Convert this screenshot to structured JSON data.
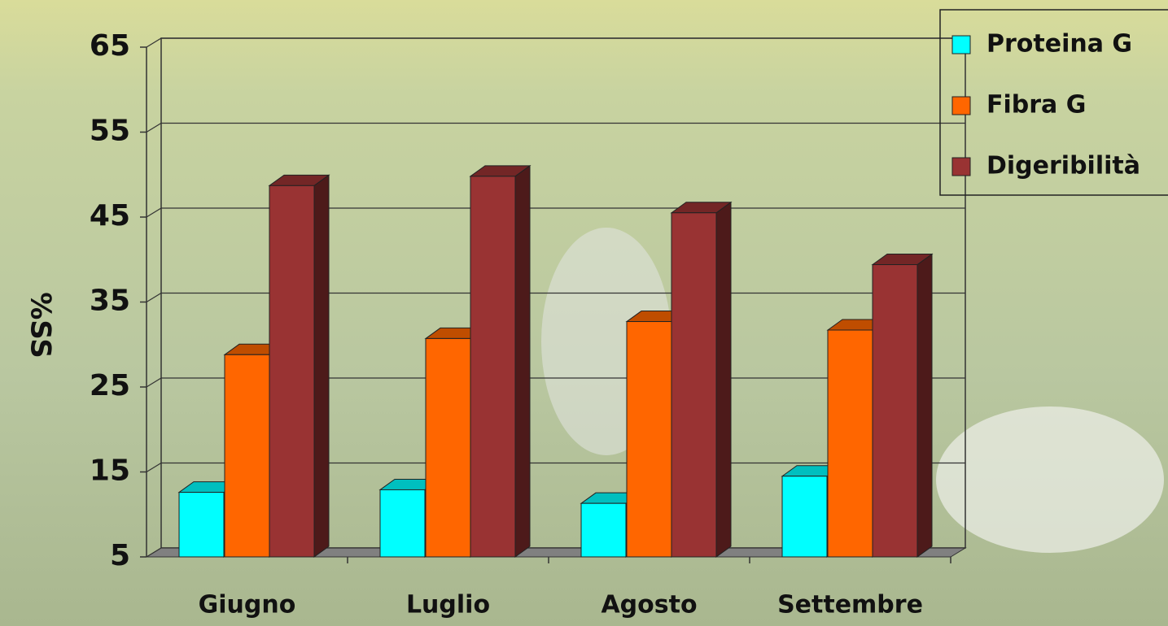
{
  "chart_data": {
    "type": "bar3d",
    "y_label": "%SS",
    "categories": [
      "Giugno",
      "Luglio",
      "Agosto",
      "Settembre"
    ],
    "series": [
      {
        "name": "Proteina G",
        "color": "#00ffff",
        "values": [
          12.6,
          12.9,
          11.3,
          14.5
        ]
      },
      {
        "name": "Fibra G",
        "color": "#ff6600",
        "values": [
          28.8,
          30.7,
          32.7,
          31.7
        ]
      },
      {
        "name": "Digeribilità",
        "color": "#993333",
        "values": [
          48.7,
          49.8,
          45.5,
          39.4
        ]
      }
    ],
    "ylim": [
      5,
      65
    ],
    "yticks": [
      5,
      15,
      25,
      35,
      45,
      55,
      65
    ],
    "grid": true,
    "legend": "top-right"
  }
}
